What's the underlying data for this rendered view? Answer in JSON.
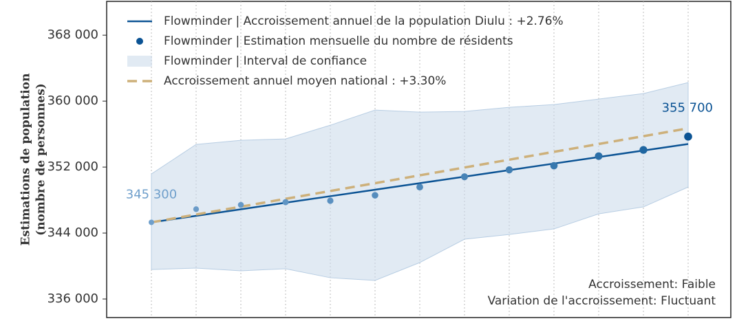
{
  "chart_data": {
    "type": "line",
    "ylabel": [
      "Estimations de population",
      "(nombre de personnes)"
    ],
    "categories": [
      null,
      null,
      null,
      null,
      null,
      null,
      null,
      null,
      null,
      null,
      null,
      null,
      null
    ],
    "ylim": [
      333750,
      372100
    ],
    "yticks": [
      {
        "value": 336000,
        "label": "336 000"
      },
      {
        "value": 344000,
        "label": "344 000"
      },
      {
        "value": 352000,
        "label": "352 000"
      },
      {
        "value": 360000,
        "label": "360 000"
      },
      {
        "value": 368000,
        "label": "368 000"
      }
    ],
    "xgrid": true,
    "legend": "upper left",
    "band": {
      "name": "Flowminder | Interval de confiance",
      "color": "#c9d9ea",
      "upper": [
        351170,
        354750,
        355250,
        355420,
        357080,
        358920,
        358670,
        358750,
        359250,
        359580,
        360250,
        360920,
        362250
      ],
      "lower": [
        339580,
        339750,
        339420,
        339670,
        338580,
        338250,
        340420,
        343250,
        343830,
        344500,
        346330,
        347170,
        349580
      ]
    },
    "series": [
      {
        "name": "Flowminder | Accroissement annuel de la population Diulu : +2.76%",
        "kind": "line",
        "color": "#0b5394",
        "dash": false,
        "values": [
          345300,
          346090,
          346880,
          347680,
          348470,
          349260,
          350050,
          350840,
          351630,
          352430,
          353220,
          354010,
          354800
        ]
      },
      {
        "name": "Flowminder | Estimation mensuelle du nombre de résidents",
        "kind": "points",
        "color": "#0b5394",
        "colors": [
          "#6f9fcb",
          "#6a9bc8",
          "#6598c6",
          "#5f94c3",
          "#5a90c0",
          "#548cbd",
          "#4e88ba",
          "#4783b6",
          "#407eb2",
          "#3778ae",
          "#2b6fa8",
          "#1f66a1",
          "#0b5394"
        ],
        "values": [
          345300,
          346900,
          347420,
          347750,
          347920,
          348580,
          349580,
          350830,
          351670,
          352170,
          353330,
          354080,
          355700
        ],
        "value_labels": [
          "345 300",
          null,
          null,
          null,
          null,
          null,
          null,
          null,
          null,
          null,
          null,
          null,
          "355 700"
        ]
      },
      {
        "name": "Accroissement annuel moyen national : +3.30%",
        "kind": "line",
        "color": "#cdb07a",
        "dash": true,
        "values": [
          345300,
          346250,
          347200,
          348150,
          349100,
          350050,
          351000,
          351950,
          352900,
          353850,
          354800,
          355750,
          356700
        ]
      }
    ],
    "annotations": [
      "Accroissement: Faible",
      "Variation de l'accroissement: Fluctuant"
    ]
  }
}
